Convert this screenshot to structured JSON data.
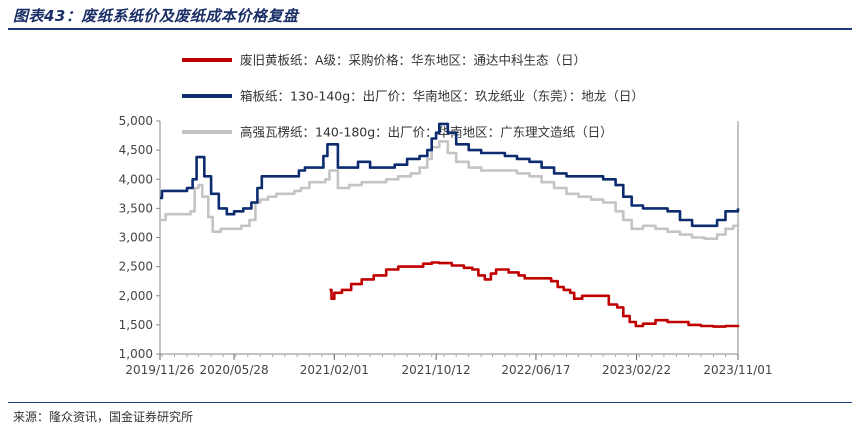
{
  "header": {
    "title": "图表43：废纸系纸价及废纸成本价格复盘"
  },
  "footer": {
    "source": "来源：隆众资讯，国金证券研究所"
  },
  "chart_data": {
    "type": "line",
    "title": "",
    "xlabel": "",
    "ylabel": "",
    "ylim": [
      1000,
      5000
    ],
    "yticks": [
      1000,
      1500,
      2000,
      2500,
      3000,
      3500,
      4000,
      4500,
      5000
    ],
    "yticklabels": [
      "1,000",
      "1,500",
      "2,000",
      "2,500",
      "3,000",
      "3,500",
      "4,000",
      "4,500",
      "5,000"
    ],
    "xlim": [
      "2019-11-26",
      "2023-11-01"
    ],
    "xticks": [
      "2019-11-26",
      "2020-05-28",
      "2021-02-01",
      "2021-10-12",
      "2022-06-17",
      "2023-02-22",
      "2023-11-01"
    ],
    "xticklabels": [
      "2019/11/26",
      "2020/05/28",
      "2021/02/01",
      "2021/10/12",
      "2022/06/17",
      "2023/02/22",
      "2023/11/01"
    ],
    "legend_position": "top",
    "grid": false,
    "series": [
      {
        "name": "废旧黄板纸：A级：采购价格：华东地区：通达中科生态（日）",
        "color": "#c00000",
        "points": [
          [
            "2021-01-20",
            2100
          ],
          [
            "2021-01-25",
            1950
          ],
          [
            "2021-02-01",
            2050
          ],
          [
            "2021-02-20",
            2100
          ],
          [
            "2021-03-15",
            2200
          ],
          [
            "2021-04-10",
            2280
          ],
          [
            "2021-05-10",
            2350
          ],
          [
            "2021-06-10",
            2450
          ],
          [
            "2021-07-10",
            2500
          ],
          [
            "2021-08-10",
            2500
          ],
          [
            "2021-09-10",
            2550
          ],
          [
            "2021-10-01",
            2570
          ],
          [
            "2021-10-20",
            2560
          ],
          [
            "2021-11-20",
            2520
          ],
          [
            "2021-12-20",
            2480
          ],
          [
            "2022-01-10",
            2450
          ],
          [
            "2022-01-25",
            2350
          ],
          [
            "2022-02-10",
            2280
          ],
          [
            "2022-02-25",
            2380
          ],
          [
            "2022-03-10",
            2450
          ],
          [
            "2022-04-10",
            2400
          ],
          [
            "2022-05-05",
            2350
          ],
          [
            "2022-05-20",
            2300
          ],
          [
            "2022-06-10",
            2300
          ],
          [
            "2022-07-10",
            2300
          ],
          [
            "2022-07-25",
            2250
          ],
          [
            "2022-08-10",
            2150
          ],
          [
            "2022-08-25",
            2100
          ],
          [
            "2022-09-10",
            2050
          ],
          [
            "2022-09-20",
            1950
          ],
          [
            "2022-10-10",
            2000
          ],
          [
            "2022-11-10",
            2000
          ],
          [
            "2022-12-01",
            2000
          ],
          [
            "2022-12-15",
            1850
          ],
          [
            "2023-01-05",
            1800
          ],
          [
            "2023-01-20",
            1650
          ],
          [
            "2023-02-05",
            1550
          ],
          [
            "2023-02-20",
            1480
          ],
          [
            "2023-03-10",
            1520
          ],
          [
            "2023-04-10",
            1580
          ],
          [
            "2023-05-10",
            1550
          ],
          [
            "2023-06-10",
            1550
          ],
          [
            "2023-07-01",
            1500
          ],
          [
            "2023-08-01",
            1480
          ],
          [
            "2023-09-01",
            1470
          ],
          [
            "2023-10-01",
            1480
          ],
          [
            "2023-11-01",
            1500
          ]
        ]
      },
      {
        "name": "箱板纸：130-140g：出厂价：华南地区：玖龙纸业（东莞）：地龙（日）",
        "color": "#0d2c6f",
        "points": [
          [
            "2019-11-26",
            3680
          ],
          [
            "2019-12-01",
            3800
          ],
          [
            "2020-01-01",
            3800
          ],
          [
            "2020-02-01",
            3850
          ],
          [
            "2020-02-15",
            4000
          ],
          [
            "2020-02-25",
            4380
          ],
          [
            "2020-03-05",
            4380
          ],
          [
            "2020-03-15",
            4050
          ],
          [
            "2020-04-01",
            3750
          ],
          [
            "2020-04-20",
            3500
          ],
          [
            "2020-05-10",
            3400
          ],
          [
            "2020-05-28",
            3450
          ],
          [
            "2020-06-20",
            3500
          ],
          [
            "2020-07-10",
            3600
          ],
          [
            "2020-07-25",
            3850
          ],
          [
            "2020-08-05",
            4050
          ],
          [
            "2020-09-10",
            4050
          ],
          [
            "2020-10-10",
            4050
          ],
          [
            "2020-10-25",
            4050
          ],
          [
            "2020-11-05",
            4150
          ],
          [
            "2020-11-20",
            4200
          ],
          [
            "2020-12-20",
            4200
          ],
          [
            "2021-01-05",
            4400
          ],
          [
            "2021-01-15",
            4600
          ],
          [
            "2021-02-01",
            4600
          ],
          [
            "2021-02-10",
            4200
          ],
          [
            "2021-03-10",
            4200
          ],
          [
            "2021-04-01",
            4300
          ],
          [
            "2021-05-01",
            4200
          ],
          [
            "2021-06-01",
            4200
          ],
          [
            "2021-07-01",
            4250
          ],
          [
            "2021-08-01",
            4350
          ],
          [
            "2021-09-01",
            4400
          ],
          [
            "2021-09-20",
            4500
          ],
          [
            "2021-10-01",
            4700
          ],
          [
            "2021-10-12",
            4800
          ],
          [
            "2021-10-20",
            4950
          ],
          [
            "2021-11-10",
            4800
          ],
          [
            "2021-12-01",
            4600
          ],
          [
            "2022-01-01",
            4500
          ],
          [
            "2022-02-01",
            4450
          ],
          [
            "2022-03-01",
            4450
          ],
          [
            "2022-04-01",
            4400
          ],
          [
            "2022-05-01",
            4350
          ],
          [
            "2022-06-01",
            4300
          ],
          [
            "2022-07-01",
            4200
          ],
          [
            "2022-08-01",
            4100
          ],
          [
            "2022-09-01",
            4050
          ],
          [
            "2022-10-01",
            4050
          ],
          [
            "2022-11-01",
            4050
          ],
          [
            "2022-12-01",
            4000
          ],
          [
            "2023-01-01",
            3900
          ],
          [
            "2023-01-20",
            3700
          ],
          [
            "2023-02-10",
            3550
          ],
          [
            "2023-03-10",
            3500
          ],
          [
            "2023-04-10",
            3500
          ],
          [
            "2023-05-10",
            3450
          ],
          [
            "2023-06-10",
            3300
          ],
          [
            "2023-07-10",
            3200
          ],
          [
            "2023-08-10",
            3200
          ],
          [
            "2023-09-10",
            3300
          ],
          [
            "2023-10-01",
            3450
          ],
          [
            "2023-10-20",
            3450
          ],
          [
            "2023-11-01",
            3500
          ]
        ]
      },
      {
        "name": "高强瓦楞纸：140-180g：出厂价：华南地区：广东理文造纸（日）",
        "color": "#c4c4c4",
        "points": [
          [
            "2019-11-26",
            3300
          ],
          [
            "2019-12-10",
            3400
          ],
          [
            "2020-01-10",
            3400
          ],
          [
            "2020-02-10",
            3450
          ],
          [
            "2020-02-20",
            3850
          ],
          [
            "2020-03-01",
            3900
          ],
          [
            "2020-03-10",
            3700
          ],
          [
            "2020-03-25",
            3350
          ],
          [
            "2020-04-05",
            3100
          ],
          [
            "2020-04-25",
            3150
          ],
          [
            "2020-05-28",
            3150
          ],
          [
            "2020-06-15",
            3200
          ],
          [
            "2020-07-05",
            3300
          ],
          [
            "2020-07-20",
            3600
          ],
          [
            "2020-08-01",
            3650
          ],
          [
            "2020-08-20",
            3700
          ],
          [
            "2020-09-10",
            3750
          ],
          [
            "2020-10-10",
            3750
          ],
          [
            "2020-10-25",
            3800
          ],
          [
            "2020-11-10",
            3850
          ],
          [
            "2020-12-01",
            3950
          ],
          [
            "2020-12-20",
            3950
          ],
          [
            "2021-01-10",
            4000
          ],
          [
            "2021-01-20",
            4150
          ],
          [
            "2021-02-01",
            4150
          ],
          [
            "2021-02-10",
            3850
          ],
          [
            "2021-03-10",
            3900
          ],
          [
            "2021-04-10",
            3950
          ],
          [
            "2021-05-10",
            3950
          ],
          [
            "2021-06-10",
            4000
          ],
          [
            "2021-07-10",
            4050
          ],
          [
            "2021-08-10",
            4100
          ],
          [
            "2021-09-01",
            4200
          ],
          [
            "2021-09-20",
            4350
          ],
          [
            "2021-10-01",
            4550
          ],
          [
            "2021-10-20",
            4650
          ],
          [
            "2021-11-10",
            4450
          ],
          [
            "2021-12-01",
            4300
          ],
          [
            "2022-01-01",
            4200
          ],
          [
            "2022-02-01",
            4150
          ],
          [
            "2022-03-01",
            4150
          ],
          [
            "2022-04-01",
            4150
          ],
          [
            "2022-05-01",
            4100
          ],
          [
            "2022-06-01",
            4050
          ],
          [
            "2022-07-01",
            3950
          ],
          [
            "2022-08-01",
            3850
          ],
          [
            "2022-09-01",
            3750
          ],
          [
            "2022-10-01",
            3700
          ],
          [
            "2022-11-01",
            3650
          ],
          [
            "2022-12-01",
            3600
          ],
          [
            "2023-01-01",
            3450
          ],
          [
            "2023-01-20",
            3300
          ],
          [
            "2023-02-10",
            3150
          ],
          [
            "2023-03-10",
            3200
          ],
          [
            "2023-04-10",
            3150
          ],
          [
            "2023-05-10",
            3100
          ],
          [
            "2023-06-10",
            3050
          ],
          [
            "2023-07-10",
            3000
          ],
          [
            "2023-08-10",
            2980
          ],
          [
            "2023-09-10",
            3050
          ],
          [
            "2023-10-01",
            3150
          ],
          [
            "2023-10-20",
            3200
          ],
          [
            "2023-11-01",
            3250
          ]
        ]
      }
    ]
  }
}
